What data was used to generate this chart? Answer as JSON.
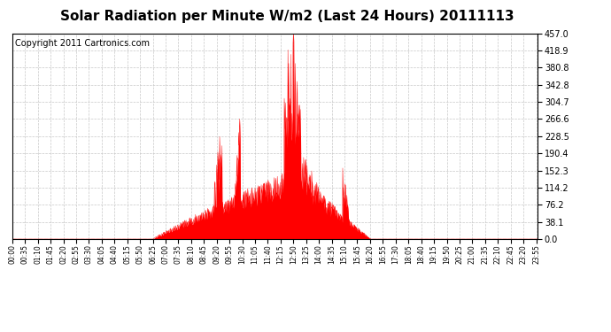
{
  "title": "Solar Radiation per Minute W/m2 (Last 24 Hours) 20111113",
  "copyright": "Copyright 2011 Cartronics.com",
  "y_ticks": [
    0.0,
    38.1,
    76.2,
    114.2,
    152.3,
    190.4,
    228.5,
    266.6,
    304.7,
    342.8,
    380.8,
    418.9,
    457.0
  ],
  "ymax": 457.0,
  "ymin": 0.0,
  "fill_color": "#ff0000",
  "line_color": "#ff0000",
  "bg_color": "#ffffff",
  "grid_color": "#c8c8c8",
  "dashed_line_color": "#ff0000",
  "title_fontsize": 11,
  "copyright_fontsize": 7,
  "tick_interval_minutes": 35,
  "total_minutes": 1440,
  "sunrise_minute": 385,
  "sunset_minute": 982
}
